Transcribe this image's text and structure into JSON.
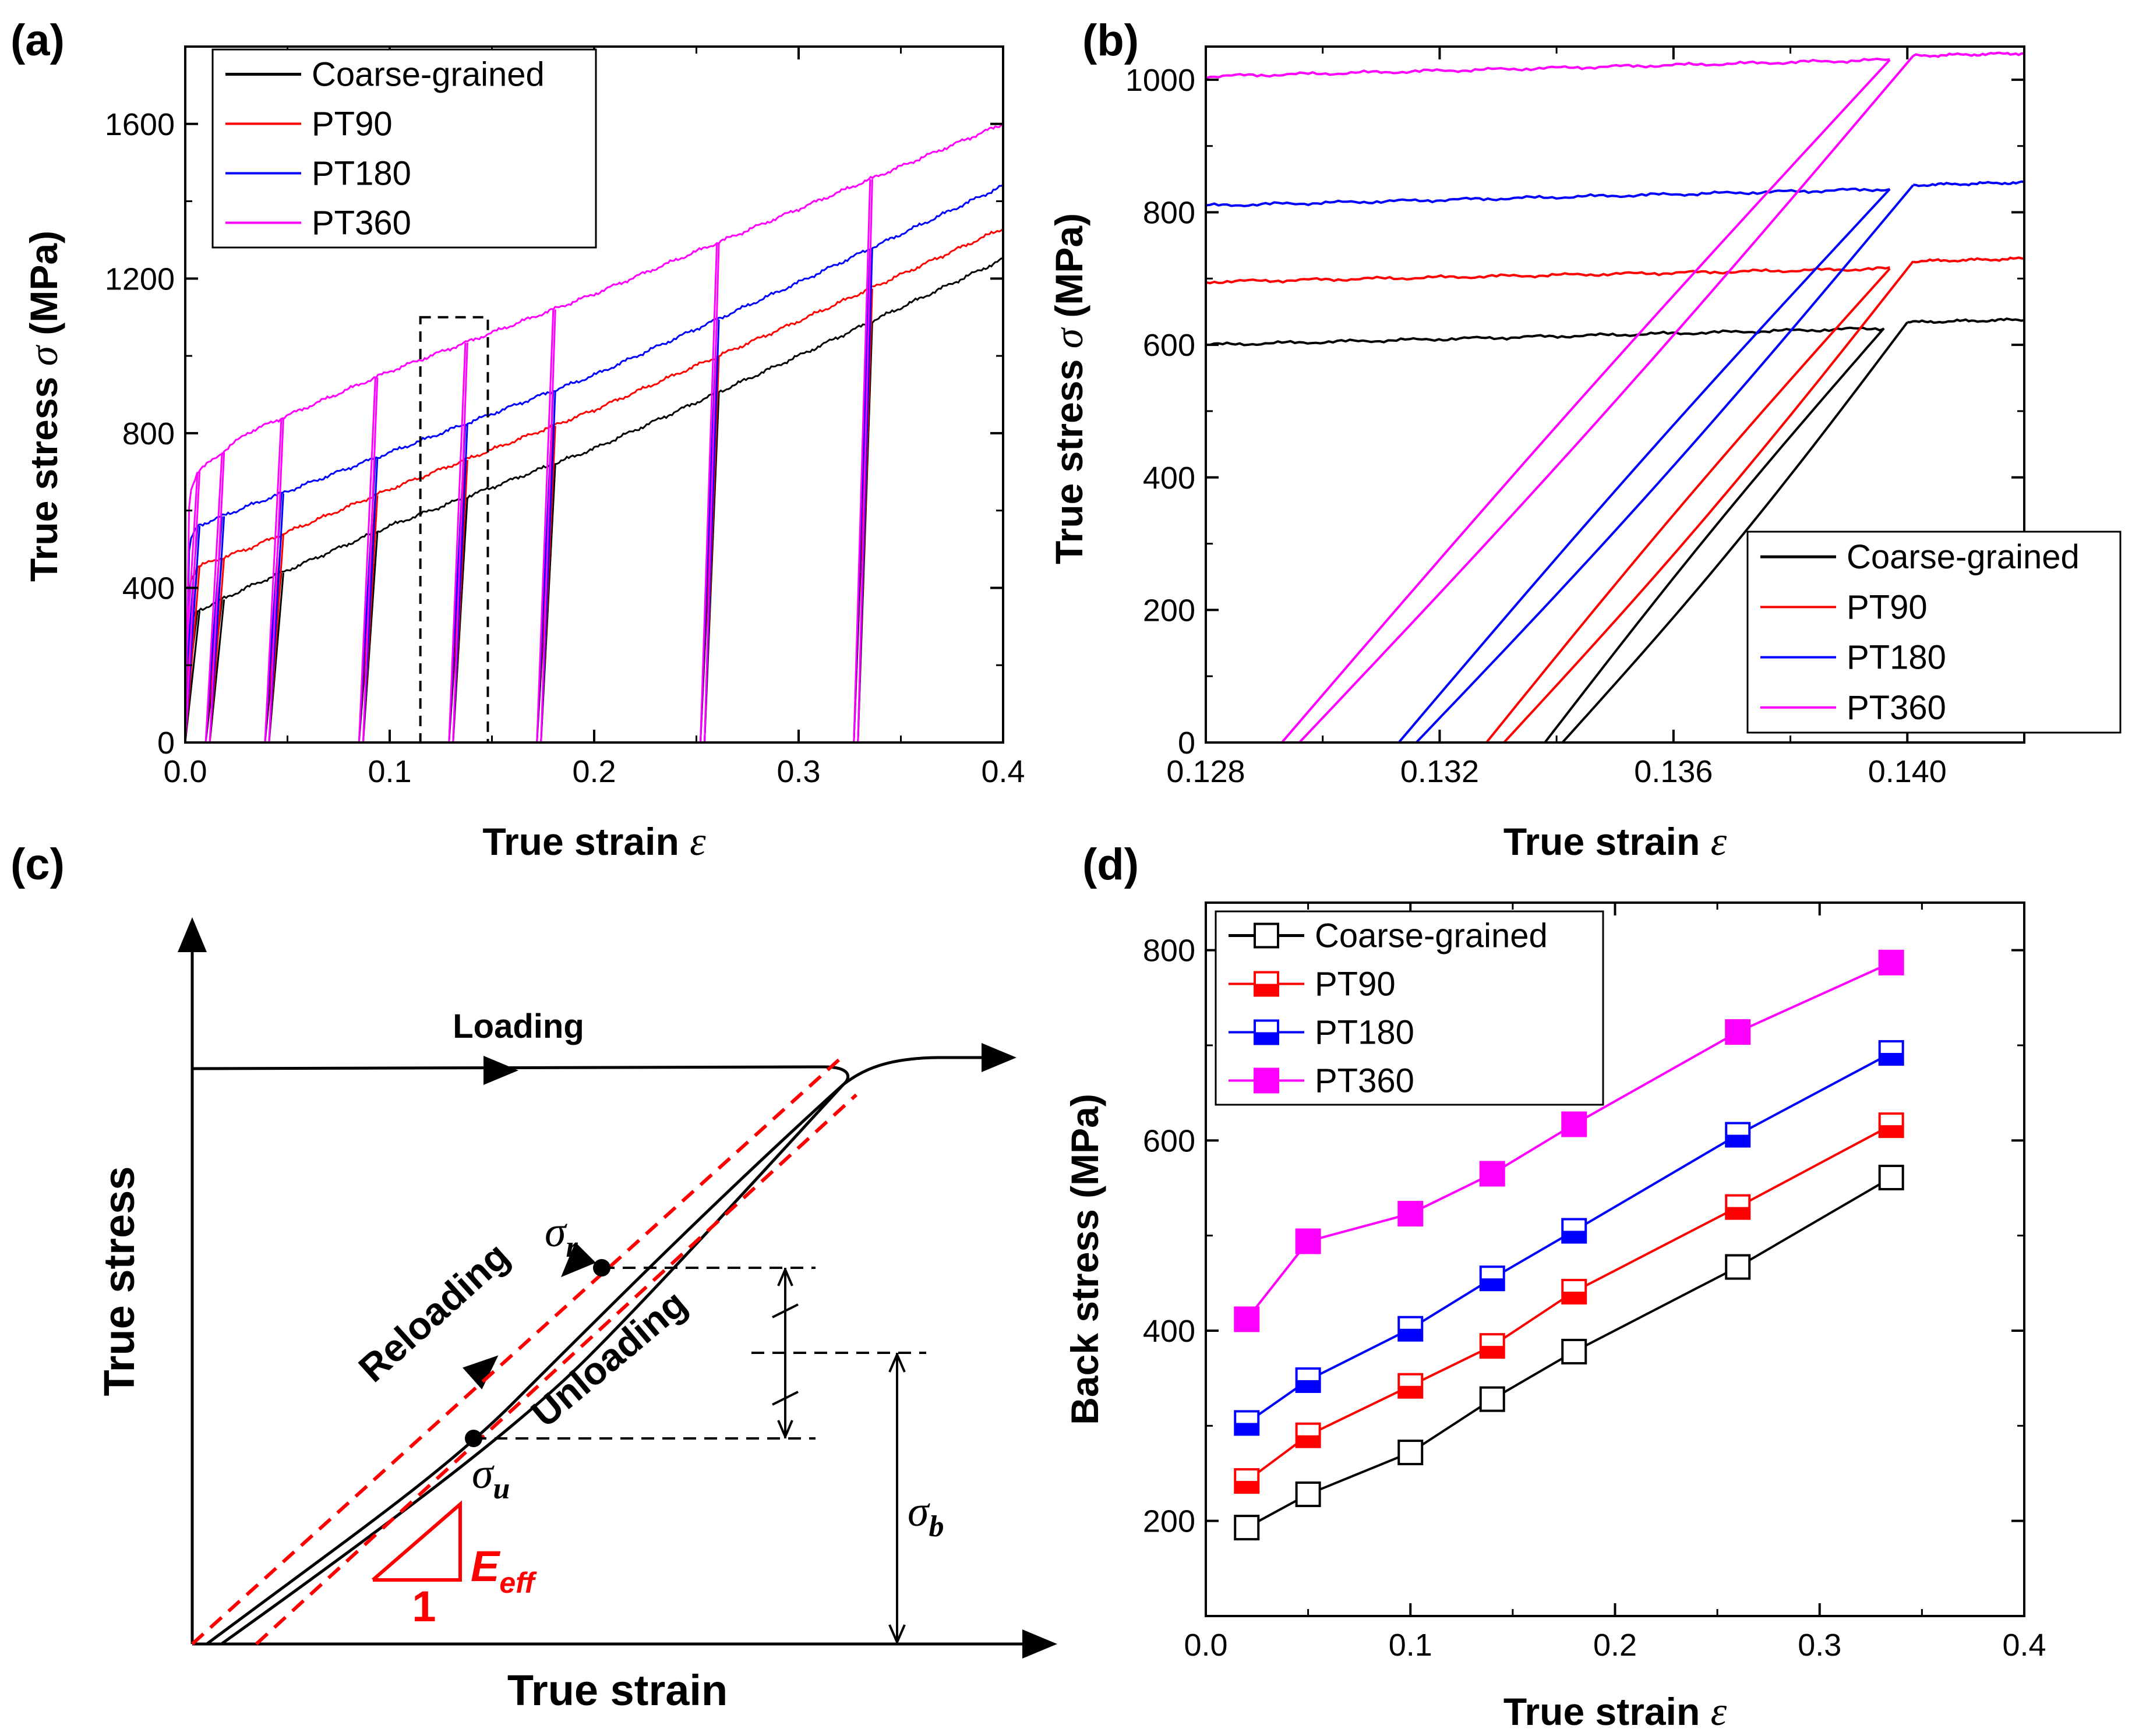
{
  "colors": {
    "coarse": "#000000",
    "pt90": "#ff0000",
    "pt180": "#0000ff",
    "pt360": "#ff00ff",
    "sketch_dashed": "#ff0000"
  },
  "chart_data": [
    {
      "panel": "(a)",
      "type": "line",
      "title": "",
      "xlabel": "True strain",
      "xsymbol": "ε",
      "ylabel": "True stress",
      "ysymbol": "σ",
      "yunit": "(MPa)",
      "xlim": [
        0.0,
        0.4
      ],
      "ylim": [
        0,
        1800
      ],
      "xticks": [
        0.0,
        0.1,
        0.2,
        0.3,
        0.4
      ],
      "xtick_labels": [
        "0.0",
        "0.1",
        "0.2",
        "0.3",
        "0.4"
      ],
      "yticks": [
        0,
        400,
        800,
        1200,
        1600
      ],
      "ytick_labels": [
        "0",
        "400",
        "800",
        "1200",
        "1600"
      ],
      "legend": [
        "Coarse-grained",
        "PT90",
        "PT180",
        "PT360"
      ],
      "legend_position": "top-left",
      "unload_strains": [
        0.006,
        0.018,
        0.047,
        0.093,
        0.137,
        0.18,
        0.26,
        0.335
      ],
      "unload_residual_strain_offset": -0.008,
      "series": [
        {
          "name": "Coarse-grained",
          "key": "coarse",
          "x": [
            0.0,
            0.002,
            0.006,
            0.03,
            0.1,
            0.2,
            0.3,
            0.4
          ],
          "y": [
            0,
            310,
            340,
            400,
            560,
            760,
            1000,
            1250
          ]
        },
        {
          "name": "PT90",
          "key": "pt90",
          "x": [
            0.0,
            0.002,
            0.006,
            0.03,
            0.1,
            0.2,
            0.3,
            0.4
          ],
          "y": [
            0,
            410,
            455,
            500,
            655,
            860,
            1090,
            1330
          ]
        },
        {
          "name": "PT180",
          "key": "pt180",
          "x": [
            0.0,
            0.002,
            0.006,
            0.03,
            0.1,
            0.2,
            0.3,
            0.4
          ],
          "y": [
            0,
            520,
            560,
            610,
            750,
            950,
            1190,
            1440
          ]
        },
        {
          "name": "PT360",
          "key": "pt360",
          "x": [
            0.0,
            0.002,
            0.006,
            0.03,
            0.1,
            0.2,
            0.3,
            0.4
          ],
          "y": [
            0,
            640,
            700,
            800,
            960,
            1160,
            1380,
            1600
          ]
        }
      ],
      "zoom_box": {
        "x": [
          0.115,
          0.148
        ],
        "y": [
          0,
          1100
        ]
      }
    },
    {
      "panel": "(b)",
      "type": "line",
      "title": "",
      "xlabel": "True strain",
      "xsymbol": "ε",
      "ylabel": "True stress",
      "ysymbol": "σ",
      "yunit": "(MPa)",
      "xlim": [
        0.128,
        0.142
      ],
      "ylim": [
        0,
        1050
      ],
      "xticks": [
        0.128,
        0.132,
        0.136,
        0.14
      ],
      "xtick_labels": [
        "0.128",
        "0.132",
        "0.136",
        "0.140"
      ],
      "yticks": [
        0,
        200,
        400,
        600,
        800,
        1000
      ],
      "ytick_labels": [
        "0",
        "200",
        "400",
        "600",
        "800",
        "1000"
      ],
      "legend": [
        "Coarse-grained",
        "PT90",
        "PT180",
        "PT360"
      ],
      "legend_position": "bottom-right",
      "series": [
        {
          "name": "Coarse-grained",
          "key": "coarse",
          "plateau_start": 600,
          "peak_strain": 0.1396,
          "peak_stress": 625,
          "end_stress": 638,
          "unload_end": 0.1338,
          "reload_start": 0.1341
        },
        {
          "name": "PT90",
          "key": "pt90",
          "plateau_start": 695,
          "peak_strain": 0.1397,
          "peak_stress": 715,
          "end_stress": 730,
          "unload_end": 0.1328,
          "reload_start": 0.1331
        },
        {
          "name": "PT180",
          "key": "pt180",
          "plateau_start": 810,
          "peak_strain": 0.1397,
          "peak_stress": 835,
          "end_stress": 845,
          "unload_end": 0.1313,
          "reload_start": 0.1316
        },
        {
          "name": "PT360",
          "key": "pt360",
          "plateau_start": 1005,
          "peak_strain": 0.1397,
          "peak_stress": 1030,
          "end_stress": 1040,
          "unload_end": 0.1293,
          "reload_start": 0.1296
        }
      ]
    },
    {
      "panel": "(c)",
      "type": "diagram",
      "xlabel": "True strain",
      "ylabel": "True stress",
      "labels": {
        "loading": "Loading",
        "reloading": "Reloading",
        "unloading": "Unloading",
        "sigma_r_main": "σ",
        "sigma_r_sub": "r",
        "sigma_u_main": "σ",
        "sigma_u_sub": "u",
        "sigma_b_main": "σ",
        "sigma_b_sub": "b",
        "eeff_main": "E",
        "eeff_sub": "eff",
        "slope_one": "1"
      }
    },
    {
      "panel": "(d)",
      "type": "line",
      "title": "",
      "xlabel": "True strain",
      "xsymbol": "ε",
      "ylabel": "Back stress (MPa)",
      "xlim": [
        0.0,
        0.4
      ],
      "ylim": [
        100,
        850
      ],
      "xticks": [
        0.0,
        0.1,
        0.2,
        0.3,
        0.4
      ],
      "xtick_labels": [
        "0.0",
        "0.1",
        "0.2",
        "0.3",
        "0.4"
      ],
      "yticks": [
        200,
        400,
        600,
        800
      ],
      "ytick_labels": [
        "200",
        "400",
        "600",
        "800"
      ],
      "legend": [
        "Coarse-grained",
        "PT90",
        "PT180",
        "PT360"
      ],
      "legend_position": "top-left",
      "x": [
        0.02,
        0.05,
        0.1,
        0.14,
        0.18,
        0.26,
        0.335
      ],
      "series": [
        {
          "name": "Coarse-grained",
          "key": "coarse",
          "marker": "open-square",
          "values": [
            193,
            228,
            272,
            328,
            378,
            467,
            561
          ]
        },
        {
          "name": "PT90",
          "key": "pt90",
          "marker": "half-square",
          "values": [
            242,
            290,
            342,
            384,
            441,
            530,
            616
          ]
        },
        {
          "name": "PT180",
          "key": "pt180",
          "marker": "half-square",
          "values": [
            303,
            348,
            402,
            455,
            505,
            606,
            692
          ]
        },
        {
          "name": "PT360",
          "key": "pt360",
          "marker": "filled-square",
          "values": [
            412,
            494,
            523,
            565,
            617,
            714,
            787
          ]
        }
      ]
    }
  ]
}
